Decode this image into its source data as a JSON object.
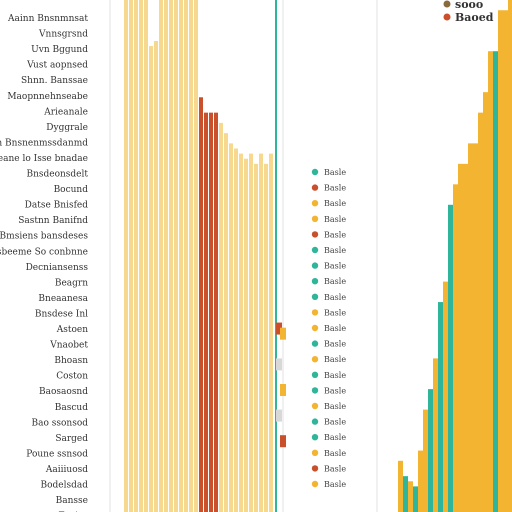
{
  "colors": {
    "pale_yellow": "#f6d98f",
    "gold": "#f3b431",
    "rust": "#c9502b",
    "teal": "#2fb59a",
    "light_gray": "#d8d8d8"
  },
  "top_legend": [
    {
      "label": "sooo",
      "color": "#8a6a3c"
    },
    {
      "label": "Baoed",
      "color": "#c9502b"
    }
  ],
  "chart_data": {
    "type": "bar",
    "title": "",
    "xlabel": "",
    "ylabel": "",
    "categories": [
      "Aainn Bnsnmnsat",
      "Vnnsgrsnd",
      "Uvn Bggund",
      "Vust aopnsed",
      "Shnn. Banssae",
      "Maopnnehnseabe",
      "Arieanale",
      "Dyggrale",
      "un Bnsnenmssdanmd",
      "Reane lo Isse bnadae",
      "Bnsdeonsdelt",
      "Bocund",
      "Datse Bnisfed",
      "Sastnn Banifnd",
      "Lne Bmsiens bansdeses",
      "Unisbeeme So conbnne",
      "Decniansenss",
      "Beagrn",
      "Bneaanesa",
      "Bnsdese Inl",
      "Astoen",
      "Vnaobet",
      "Bhoasn",
      "Coston",
      "Baosaosnd",
      "Bascud",
      "Bao ssonsod",
      "Sarged",
      "Poune ssnsod",
      "Aaiiiuosd",
      "Bodelsdad",
      "Bansse",
      "Fanise"
    ],
    "left_bars": {
      "x": [
        124,
        129,
        134,
        139,
        144,
        149,
        154,
        159,
        164,
        169,
        174,
        179,
        184,
        189,
        194,
        199,
        204,
        209,
        214,
        219,
        224,
        229,
        234,
        239,
        244,
        249,
        254,
        259,
        264,
        269
      ],
      "values": [
        100,
        100,
        100,
        100,
        100,
        91,
        92,
        100,
        100,
        100,
        100,
        100,
        100,
        100,
        100,
        81,
        78,
        78,
        78,
        76,
        74,
        72,
        71,
        70,
        69,
        70,
        68,
        70,
        68,
        70
      ],
      "colors": [
        "#f6d98f",
        "#f6d98f",
        "#f6d98f",
        "#f6d98f",
        "#f6d98f",
        "#f6d98f",
        "#f6d98f",
        "#f6d98f",
        "#f6d98f",
        "#f6d98f",
        "#f6d98f",
        "#f6d98f",
        "#f6d98f",
        "#f6d98f",
        "#f6d98f",
        "#c9502b",
        "#c9502b",
        "#c9502b",
        "#c9502b",
        "#f6d98f",
        "#f6d98f",
        "#f6d98f",
        "#f6d98f",
        "#f6d98f",
        "#f6d98f",
        "#f6d98f",
        "#f6d98f",
        "#f6d98f",
        "#f6d98f",
        "#f6d98f"
      ]
    },
    "markers": [
      {
        "color": "#c9502b",
        "value": 37
      },
      {
        "color": "#f3b431",
        "value": 36
      },
      {
        "color": "#d8d8d8",
        "value": 30
      },
      {
        "color": "#f3b431",
        "value": 25
      },
      {
        "color": "#d8d8d8",
        "value": 20
      },
      {
        "color": "#c9502b",
        "value": 15
      }
    ],
    "middle_legend": [
      {
        "label": "Basle",
        "color": "#2fb59a"
      },
      {
        "label": "Basle",
        "color": "#c9502b"
      },
      {
        "label": "Basle",
        "color": "#f3b431"
      },
      {
        "label": "Basle",
        "color": "#f3b431"
      },
      {
        "label": "Basle",
        "color": "#c9502b"
      },
      {
        "label": "Basle",
        "color": "#2fb59a"
      },
      {
        "label": "Basle",
        "color": "#2fb59a"
      },
      {
        "label": "Basle",
        "color": "#2fb59a"
      },
      {
        "label": "Basle",
        "color": "#2fb59a"
      },
      {
        "label": "Basle",
        "color": "#f3b431"
      },
      {
        "label": "Basle",
        "color": "#f3b431"
      },
      {
        "label": "Basle",
        "color": "#2fb59a"
      },
      {
        "label": "Basle",
        "color": "#f3b431"
      },
      {
        "label": "Basle",
        "color": "#2fb59a"
      },
      {
        "label": "Basle",
        "color": "#2fb59a"
      },
      {
        "label": "Basle",
        "color": "#f3b431"
      },
      {
        "label": "Basle",
        "color": "#2fb59a"
      },
      {
        "label": "Basle",
        "color": "#2fb59a"
      },
      {
        "label": "Basle",
        "color": "#f3b431"
      },
      {
        "label": "Basle",
        "color": "#c9502b"
      },
      {
        "label": "Basle",
        "color": "#f3b431"
      }
    ],
    "right_bars": {
      "x": [
        398,
        403,
        408,
        413,
        418,
        423,
        428,
        433,
        438,
        443,
        448,
        453,
        458,
        463,
        468,
        473,
        478,
        483,
        488,
        493,
        498,
        503,
        508
      ],
      "values": [
        10,
        7,
        6,
        5,
        12,
        20,
        24,
        30,
        41,
        45,
        60,
        64,
        68,
        68,
        72,
        72,
        78,
        82,
        90,
        90,
        98,
        98,
        100
      ],
      "colors": [
        "#f3b431",
        "#2fb59a",
        "#f3b431",
        "#2fb59a",
        "#f3b431",
        "#f3b431",
        "#2fb59a",
        "#f3b431",
        "#2fb59a",
        "#f3b431",
        "#2fb59a",
        "#f3b431",
        "#f3b431",
        "#f3b431",
        "#f3b431",
        "#f3b431",
        "#f3b431",
        "#f3b431",
        "#f3b431",
        "#2fb59a",
        "#f3b431",
        "#f3b431",
        "#f3b431"
      ]
    }
  }
}
